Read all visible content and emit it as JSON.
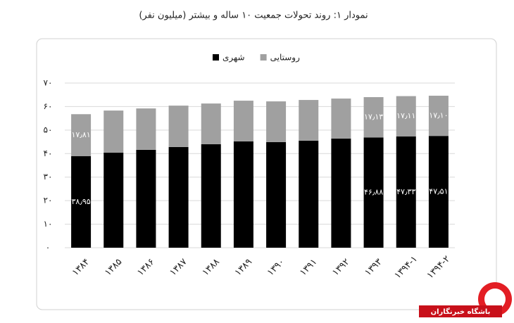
{
  "chart_data": {
    "type": "stacked-bar",
    "title": "نمودار ۱: روند تحولات جمعیت ۱۰ ساله و بیشتر (میلیون نفر)",
    "categories": [
      "۱۳۸۴",
      "۱۳۸۵",
      "۱۳۸۶",
      "۱۳۸۷",
      "۱۳۸۸",
      "۱۳۸۹",
      "۱۳۹۰",
      "۱۳۹۱",
      "۱۳۹۲",
      "۱۳۹۳",
      "۱۳۹۴-۱",
      "۱۳۹۴-۲"
    ],
    "series": [
      {
        "name": "شهری",
        "color": "#000000",
        "values": [
          38.95,
          40.4,
          41.6,
          42.8,
          44.0,
          45.2,
          44.9,
          45.5,
          46.4,
          46.88,
          47.33,
          47.51
        ],
        "value_labels": [
          "۳۸٫۹۵",
          null,
          null,
          null,
          null,
          null,
          null,
          null,
          null,
          "۴۶٫۸۸",
          "۴۷٫۳۳",
          "۴۷٫۵۱"
        ]
      },
      {
        "name": "روستایی",
        "color": "#a0a0a0",
        "values": [
          17.81,
          17.9,
          17.6,
          17.6,
          17.3,
          17.3,
          17.3,
          17.3,
          17.0,
          17.13,
          17.11,
          17.1
        ],
        "value_labels": [
          "۱۷٫۸۱",
          null,
          null,
          null,
          null,
          null,
          null,
          null,
          null,
          "۱۷٫۱۳",
          "۱۷٫۱۱",
          "۱۷٫۱۰"
        ]
      }
    ],
    "ylim": [
      0,
      70
    ],
    "yticks": [
      {
        "value": 0,
        "label": "۰"
      },
      {
        "value": 10,
        "label": "۱۰"
      },
      {
        "value": 20,
        "label": "۲۰"
      },
      {
        "value": 30,
        "label": "۳۰"
      },
      {
        "value": 40,
        "label": "۴۰"
      },
      {
        "value": 50,
        "label": "۵۰"
      },
      {
        "value": 60,
        "label": "۶۰"
      },
      {
        "value": 70,
        "label": "۷۰"
      }
    ],
    "grid": true,
    "legend": "top"
  },
  "watermark": "باشگاه خبرنگاران"
}
